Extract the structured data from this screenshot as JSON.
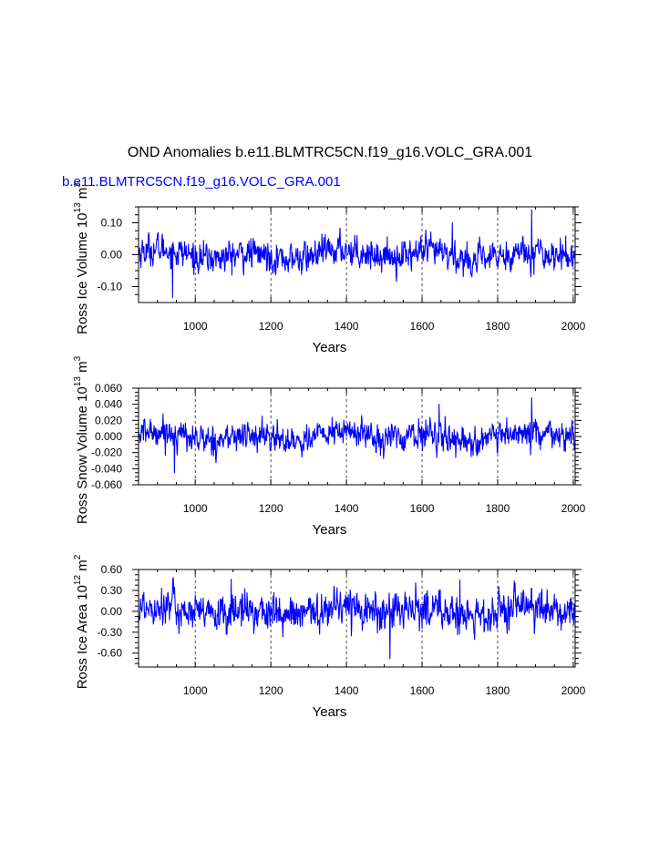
{
  "title": "OND Anomalies b.e11.BLMTRC5CN.f19_g16.VOLC_GRA.001",
  "subtitle": "b.e11.BLMTRC5CN.f19_g16.VOLC_GRA.001",
  "colors": {
    "series": "#0000ff",
    "subtitle": "#0000ff",
    "axis": "#000000"
  },
  "chart_data": [
    {
      "type": "line",
      "title": "",
      "xlabel": "Years",
      "ylabel": "Ross Ice Volume 10",
      "ylabel_sup": "13",
      "ylabel_unit": "m",
      "ylabel_unit_sup": "3",
      "xlim": [
        850,
        2005
      ],
      "ylim": [
        -0.15,
        0.15
      ],
      "xticks": [
        1000,
        1200,
        1400,
        1600,
        1800,
        2000
      ],
      "xtick_labels": [
        "1000",
        "1200",
        "1400",
        "1600",
        "1800",
        "2000"
      ],
      "yticks": [
        0.1,
        0.0,
        -0.1
      ],
      "ytick_labels": [
        "0.10",
        "0.00",
        "-0.10"
      ],
      "grid": "dashed vertical at major x ticks",
      "series": [
        {
          "name": "Ross Ice Volume",
          "x_start": 850,
          "x_end": 2005,
          "step": 1,
          "approx_std": 0.03,
          "approx_min": -0.135,
          "approx_max": 0.14,
          "notable": [
            [
              1890,
              0.14
            ],
            [
              940,
              -0.135
            ],
            [
              1680,
              0.1
            ]
          ]
        }
      ]
    },
    {
      "type": "line",
      "title": "",
      "xlabel": "Years",
      "ylabel": "Ross Snow Volume 10",
      "ylabel_sup": "13",
      "ylabel_unit": "m",
      "ylabel_unit_sup": "3",
      "xlim": [
        850,
        2005
      ],
      "ylim": [
        -0.06,
        0.06
      ],
      "xticks": [
        1000,
        1200,
        1400,
        1600,
        1800,
        2000
      ],
      "xtick_labels": [
        "1000",
        "1200",
        "1400",
        "1600",
        "1800",
        "2000"
      ],
      "yticks": [
        0.06,
        0.04,
        0.02,
        0.0,
        -0.02,
        -0.04,
        -0.06
      ],
      "ytick_labels": [
        "0.060",
        "0.040",
        "0.020",
        "0.000",
        "-0.020",
        "-0.040",
        "-0.060"
      ],
      "grid": "dashed vertical at major x ticks",
      "series": [
        {
          "name": "Ross Snow Volume",
          "x_start": 850,
          "x_end": 2005,
          "step": 1,
          "approx_std": 0.011,
          "approx_min": -0.045,
          "approx_max": 0.048,
          "notable": [
            [
              1890,
              0.048
            ],
            [
              1645,
              0.04
            ],
            [
              945,
              -0.045
            ]
          ]
        }
      ]
    },
    {
      "type": "line",
      "title": "",
      "xlabel": "Years",
      "ylabel": "Ross Ice Area 10",
      "ylabel_sup": "12",
      "ylabel_unit": "m",
      "ylabel_unit_sup": "2",
      "xlim": [
        850,
        2005
      ],
      "ylim": [
        -0.8,
        0.6
      ],
      "xticks": [
        1000,
        1200,
        1400,
        1600,
        1800,
        2000
      ],
      "xtick_labels": [
        "1000",
        "1200",
        "1400",
        "1600",
        "1800",
        "2000"
      ],
      "yticks": [
        0.6,
        0.3,
        0.0,
        -0.3,
        -0.6
      ],
      "ytick_labels": [
        "0.60",
        "0.30",
        "0.00",
        "-0.30",
        "-0.60"
      ],
      "grid": "dashed vertical at major x ticks",
      "series": [
        {
          "name": "Ross Ice Area",
          "x_start": 850,
          "x_end": 2005,
          "step": 1,
          "approx_std": 0.17,
          "approx_min": -0.68,
          "approx_max": 0.48,
          "notable": [
            [
              1515,
              -0.68
            ],
            [
              1700,
              0.45
            ],
            [
              1095,
              0.46
            ]
          ]
        }
      ]
    }
  ]
}
